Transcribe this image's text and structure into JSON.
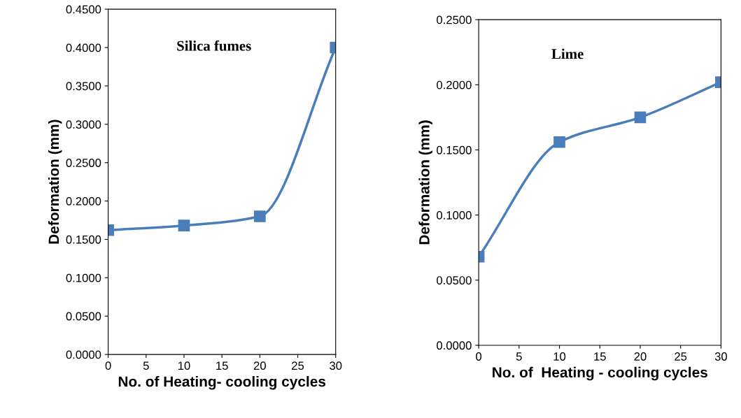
{
  "chart_data": [
    {
      "type": "line",
      "xlabel": "No. of Heating- cooling cycles",
      "ylabel": "Deformation (mm)",
      "annotations": [
        "Silica fumes"
      ],
      "x": [
        0,
        10,
        20,
        30
      ],
      "series": [
        {
          "color": "#4a7ebb",
          "values": [
            0.162,
            0.168,
            0.18,
            0.4
          ]
        }
      ],
      "xlim": [
        0,
        30
      ],
      "xticks": [
        0,
        5,
        10,
        15,
        20,
        25,
        30
      ],
      "ylim": [
        0,
        0.45
      ],
      "yticks": [
        {
          "value": 0,
          "label": "0.0000"
        },
        {
          "value": 0.05,
          "label": "0.0500"
        },
        {
          "value": 0.1,
          "label": "0.1000"
        },
        {
          "value": 0.15,
          "label": "0.1500"
        },
        {
          "value": 0.2,
          "label": "0.2000"
        },
        {
          "value": 0.25,
          "label": "0.2500"
        },
        {
          "value": 0.3,
          "label": "0.3000"
        },
        {
          "value": 0.35,
          "label": "0.3500"
        },
        {
          "value": 0.4,
          "label": "0.4000"
        },
        {
          "value": 0.45,
          "label": "0.4500"
        }
      ],
      "marker": "square",
      "grid": false
    },
    {
      "type": "line",
      "xlabel": "No. of  Heating - cooling cycles",
      "ylabel": "Deformation (mm)",
      "annotations": [
        "Lime"
      ],
      "x": [
        0,
        10,
        20,
        30
      ],
      "series": [
        {
          "color": "#4a7ebb",
          "values": [
            0.068,
            0.156,
            0.175,
            0.202
          ]
        }
      ],
      "xlim": [
        0,
        30
      ],
      "xticks": [
        0,
        5,
        10,
        15,
        20,
        25,
        30
      ],
      "ylim": [
        0,
        0.25
      ],
      "yticks": [
        {
          "value": 0,
          "label": "0.0000"
        },
        {
          "value": 0.05,
          "label": "0.0500"
        },
        {
          "value": 0.1,
          "label": "0.1000"
        },
        {
          "value": 0.15,
          "label": "0.1500"
        },
        {
          "value": 0.2,
          "label": "0.2000"
        },
        {
          "value": 0.25,
          "label": "0.2500"
        }
      ],
      "marker": "square",
      "grid": false
    }
  ]
}
